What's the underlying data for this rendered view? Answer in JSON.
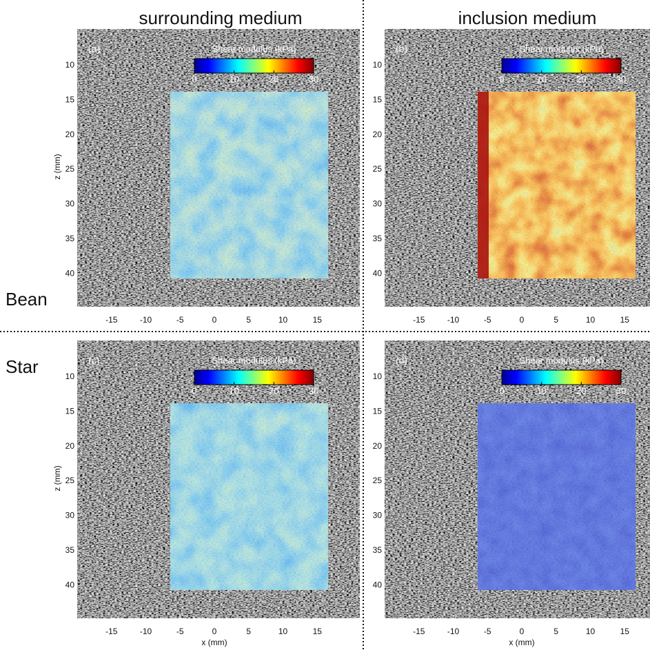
{
  "columns": [
    "surrounding medium",
    "inclusion medium"
  ],
  "rows": [
    "Bean",
    "Star"
  ],
  "panels": [
    {
      "label": "(a)",
      "colorbar": {
        "title": "Shear modulus (kPa)",
        "ticks": [
          0,
          10,
          20,
          30
        ]
      },
      "xticks": [
        -15,
        -10,
        -5,
        0,
        5,
        10,
        15
      ],
      "yticks": [
        10,
        15,
        20,
        25,
        30,
        35,
        40
      ],
      "ylabel": "z (mm)"
    },
    {
      "label": "(b)",
      "colorbar": {
        "title": "Shear modulus (kPa)",
        "ticks": [
          0,
          10,
          20,
          30
        ]
      },
      "xticks": [
        -15,
        -10,
        -5,
        0,
        5,
        10,
        15
      ],
      "yticks": [
        10,
        15,
        20,
        25,
        30,
        35,
        40
      ]
    },
    {
      "label": "(c)",
      "colorbar": {
        "title": "Shear modulus (kPa)",
        "ticks": [
          0,
          10,
          20,
          30
        ]
      },
      "xticks": [
        -15,
        -10,
        -5,
        0,
        5,
        10,
        15
      ],
      "yticks": [
        10,
        15,
        20,
        25,
        30,
        35,
        40
      ],
      "ylabel": "z (mm)",
      "xlabel": "x (mm)"
    },
    {
      "label": "(d)",
      "colorbar": {
        "title": "Shear modulus (kPa)",
        "ticks": [
          0,
          10,
          20,
          30
        ]
      },
      "xticks": [
        -15,
        -10,
        -5,
        0,
        5,
        10,
        15
      ],
      "yticks": [
        10,
        15,
        20,
        25,
        30,
        35,
        40
      ],
      "xlabel": "x (mm)"
    }
  ]
}
